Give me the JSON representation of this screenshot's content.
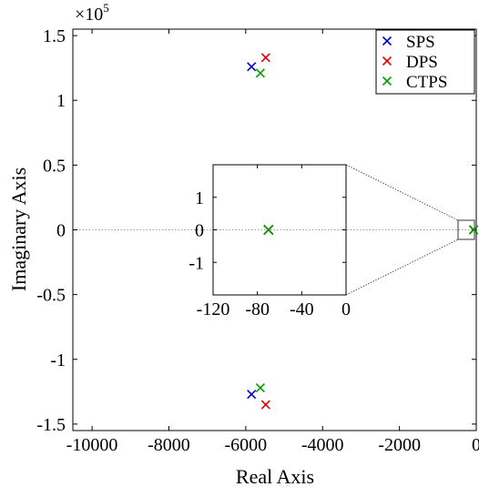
{
  "chart_data": {
    "type": "scatter",
    "xlabel": "Real Axis",
    "ylabel": "Imaginary Axis",
    "exponent_base": "×10",
    "exponent_power": "5",
    "xlim": [
      -10500,
      0
    ],
    "ylim": [
      -1.55,
      1.55
    ],
    "x_ticks": [
      -10000,
      -8000,
      -6000,
      -4000,
      -2000,
      0
    ],
    "y_ticks": [
      -1.5,
      -1,
      -0.5,
      0,
      0.5,
      1,
      1.5
    ],
    "grid": false,
    "legend_position": "top-right",
    "series": [
      {
        "name": "SPS",
        "color": "#0000cc",
        "marker": "x",
        "points": [
          [
            -5850,
            1.26
          ],
          [
            -5850,
            -1.27
          ],
          [
            -70,
            0
          ]
        ]
      },
      {
        "name": "DPS",
        "color": "#e60000",
        "marker": "x",
        "points": [
          [
            -5480,
            1.33
          ],
          [
            -5480,
            -1.35
          ],
          [
            -70,
            0
          ]
        ]
      },
      {
        "name": "CTPS",
        "color": "#00a000",
        "marker": "x",
        "points": [
          [
            -5620,
            1.21
          ],
          [
            -5620,
            -1.22
          ],
          [
            -70,
            0
          ]
        ]
      }
    ],
    "inset": {
      "xlim": [
        -120,
        0
      ],
      "ylim": [
        -2,
        2
      ],
      "x_ticks": [
        -120,
        -80,
        -40,
        0
      ],
      "y_ticks": [
        -1,
        0,
        1
      ],
      "points": [
        [
          -70,
          0
        ]
      ]
    }
  }
}
